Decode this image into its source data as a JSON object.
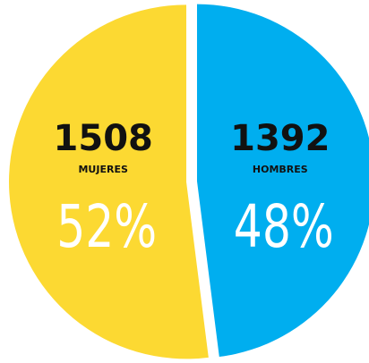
{
  "chart_data": {
    "type": "pie",
    "categories": [
      "MUJERES",
      "HOMBRES"
    ],
    "values": [
      52,
      48
    ],
    "value_labels": [
      "52%",
      "48%"
    ],
    "counts": [
      1508,
      1392
    ],
    "colors": [
      "#fcd932",
      "#00aeef"
    ]
  }
}
